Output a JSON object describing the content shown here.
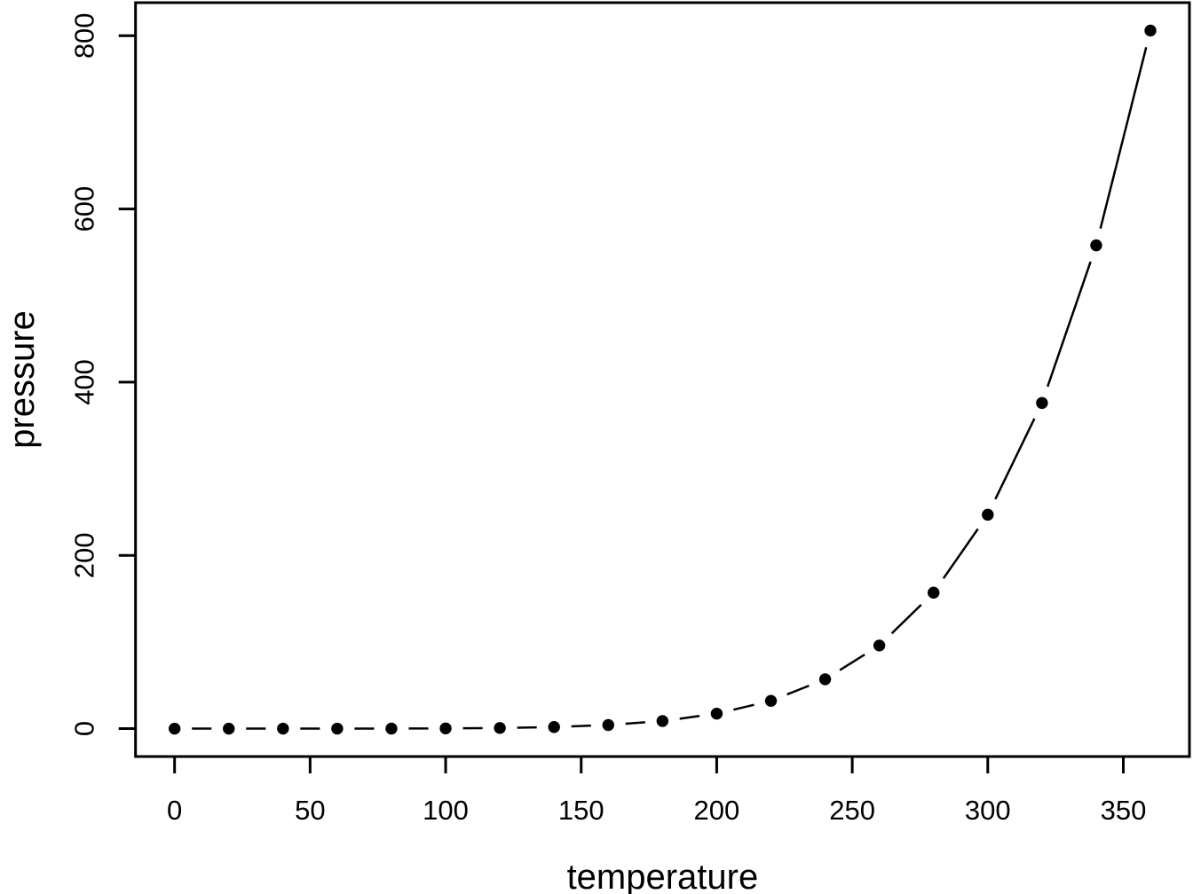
{
  "chart_data": {
    "type": "line",
    "plot_style": "points-with-gapped-line-segments (R base plot, type='b', pch=19)",
    "title": "",
    "xlabel": "temperature",
    "ylabel": "pressure",
    "x": [
      0,
      20,
      40,
      60,
      80,
      100,
      120,
      140,
      160,
      180,
      200,
      220,
      240,
      260,
      280,
      300,
      320,
      340,
      360
    ],
    "y": [
      0.0002,
      0.0012,
      0.006,
      0.03,
      0.09,
      0.27,
      0.75,
      1.85,
      4.2,
      8.8,
      17.3,
      32.1,
      57.0,
      96.0,
      157.0,
      247.0,
      376.0,
      558.0,
      806.0
    ],
    "x_ticks": [
      0,
      50,
      100,
      150,
      200,
      250,
      300,
      350
    ],
    "y_ticks": [
      0,
      200,
      400,
      600,
      800
    ],
    "xlim": [
      -14.4,
      374.4
    ],
    "ylim": [
      -32.2,
      838.2
    ],
    "grid": false,
    "legend": "none",
    "marker": "filled-circle",
    "colors": {
      "foreground": "#000000",
      "background": "#ffffff"
    }
  }
}
